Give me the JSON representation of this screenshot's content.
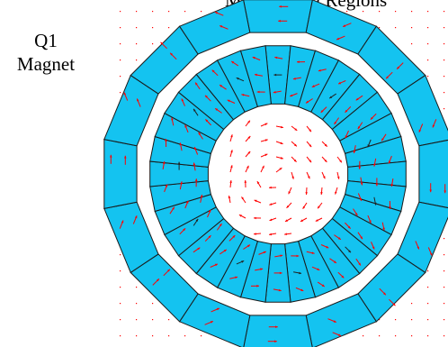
{
  "title": {
    "name": "Q1",
    "subtitle": "Magnet"
  },
  "top_caption": "Magnetizing Regions",
  "colors": {
    "segment_fill": "#14c3f0",
    "segment_stroke": "#1a1a1a",
    "arrow": "#ff0000",
    "grid_dot": "#ff0000",
    "background": "#ffffff"
  },
  "structure": {
    "outer_ring_segments": 16,
    "inner_ring_segments": 32,
    "field_arrows_shown": true
  }
}
